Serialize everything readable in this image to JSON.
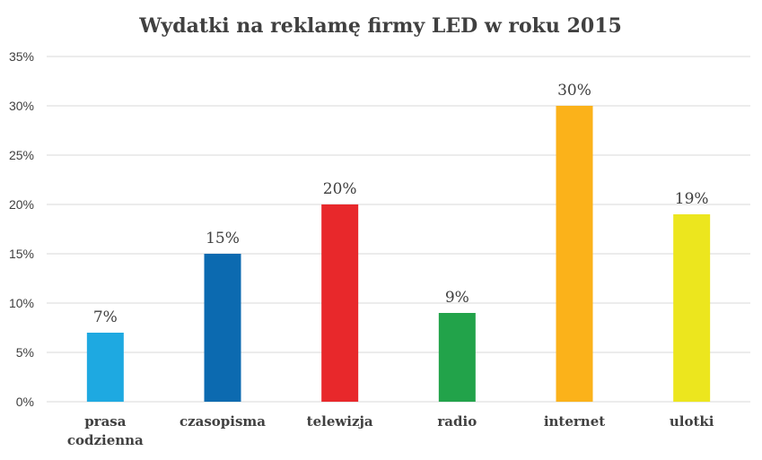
{
  "chart_data": {
    "type": "bar",
    "title": "Wydatki na reklamę firmy LED w roku 2015",
    "categories": [
      [
        "prasa",
        "codzienna"
      ],
      [
        "czasopisma"
      ],
      [
        "telewizja"
      ],
      [
        "radio"
      ],
      [
        "internet"
      ],
      [
        "ulotki"
      ]
    ],
    "values": [
      7,
      15,
      20,
      9,
      30,
      19
    ],
    "data_labels": [
      "7%",
      "15%",
      "20%",
      "9%",
      "30%",
      "19%"
    ],
    "colors": [
      "#1ea9e1",
      "#0c6ab0",
      "#e8282b",
      "#22a34a",
      "#fbb21a",
      "#ece61e"
    ],
    "ylim": [
      0,
      35
    ],
    "yticks": [
      {
        "value": 0,
        "label": "0%"
      },
      {
        "value": 5,
        "label": "5%"
      },
      {
        "value": 10,
        "label": "10%"
      },
      {
        "value": 15,
        "label": "15%"
      },
      {
        "value": 20,
        "label": "20%"
      },
      {
        "value": 25,
        "label": "25%"
      },
      {
        "value": 30,
        "label": "30%"
      },
      {
        "value": 35,
        "label": "35%"
      }
    ],
    "grid": true,
    "xlabel": "",
    "ylabel": ""
  }
}
